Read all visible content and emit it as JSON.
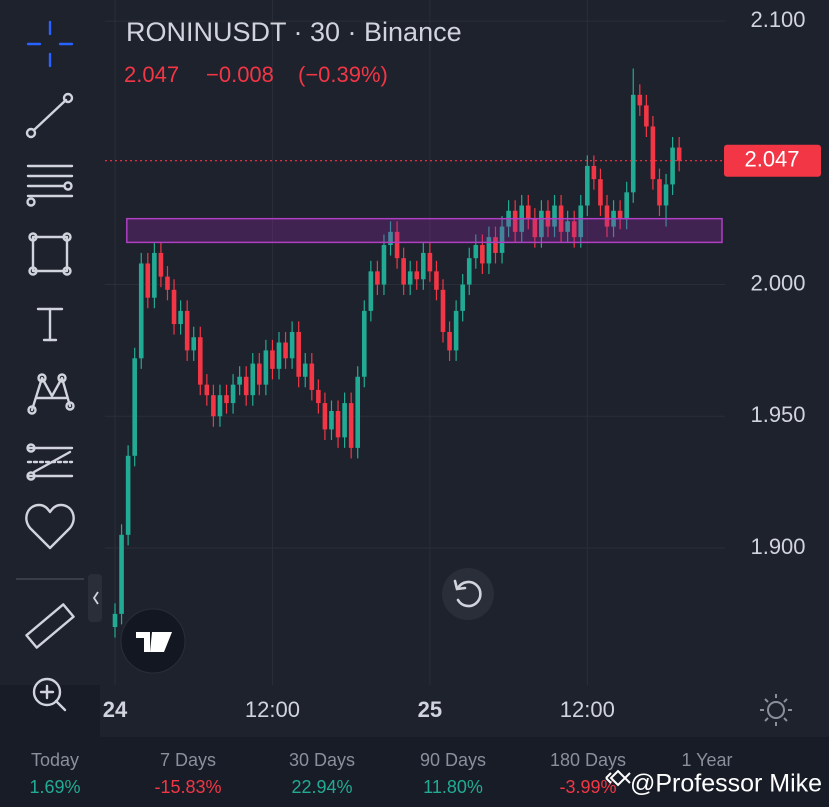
{
  "chart_data": {
    "type": "candlestick",
    "title": "RONINUSDT · 30 · Binance",
    "last_price": 2.047,
    "change": "−0.008",
    "change_pct": "(−0.39%)",
    "up_color": "#22ab94",
    "down_color": "#f23645",
    "grid": true,
    "ylim": [
      1.848,
      2.108
    ],
    "yticks": [
      {
        "value": 1.9,
        "label": "1.900"
      },
      {
        "value": 1.95,
        "label": "1.950"
      },
      {
        "value": 2.0,
        "label": "2.000"
      },
      {
        "value": 2.1,
        "label": "2.100"
      }
    ],
    "zone": {
      "low": 2.016,
      "high": 2.025,
      "start": 1.8
    },
    "categories": [
      "24",
      null,
      null,
      null,
      null,
      null,
      null,
      null,
      null,
      null,
      null,
      null,
      null,
      null,
      null,
      null,
      null,
      null,
      null,
      null,
      null,
      null,
      null,
      null,
      "12:00",
      null,
      null,
      null,
      null,
      null,
      null,
      null,
      null,
      null,
      null,
      null,
      null,
      null,
      null,
      null,
      null,
      null,
      null,
      null,
      null,
      null,
      null,
      null,
      "25",
      null,
      null,
      null,
      null,
      null,
      null,
      null,
      null,
      null,
      null,
      null,
      null,
      null,
      null,
      null,
      null,
      null,
      null,
      null,
      null,
      null,
      null,
      null,
      "12:00",
      null,
      null,
      null,
      null,
      null,
      null,
      null,
      null,
      null,
      null,
      null,
      null,
      null,
      null
    ],
    "open": [
      1.87,
      1.875,
      1.905,
      1.935,
      1.972,
      2.008,
      1.995,
      2.012,
      2.003,
      1.998,
      1.985,
      1.99,
      1.975,
      1.98,
      1.962,
      1.958,
      1.95,
      1.958,
      1.955,
      1.962,
      1.965,
      1.958,
      1.97,
      1.962,
      1.975,
      1.968,
      1.978,
      1.972,
      1.982,
      1.965,
      1.97,
      1.96,
      1.955,
      1.945,
      1.952,
      1.942,
      1.955,
      1.938,
      1.965,
      1.99,
      2.005,
      2.0,
      2.015,
      2.02,
      2.01,
      2.0,
      2.005,
      2.002,
      2.012,
      2.005,
      1.998,
      1.982,
      1.975,
      1.99,
      2.0,
      2.01,
      2.015,
      2.008,
      2.018,
      2.012,
      2.022,
      2.028,
      2.02,
      2.03,
      2.025,
      2.018,
      2.028,
      2.022,
      2.03,
      2.02,
      2.024,
      2.018,
      2.03,
      2.045,
      2.04,
      2.03,
      2.022,
      2.028,
      2.025,
      2.035,
      2.072,
      2.068,
      2.06,
      2.04,
      2.03,
      2.038,
      2.052
    ],
    "high": [
      1.879,
      1.909,
      1.939,
      1.976,
      2.012,
      2.012,
      2.016,
      2.016,
      2.007,
      2.002,
      1.994,
      1.994,
      1.984,
      1.984,
      1.966,
      1.962,
      1.962,
      1.962,
      1.966,
      1.969,
      1.969,
      1.974,
      1.974,
      1.979,
      1.979,
      1.982,
      1.982,
      1.986,
      1.986,
      1.974,
      1.974,
      1.964,
      1.959,
      1.956,
      1.956,
      1.959,
      1.959,
      1.969,
      1.994,
      2.009,
      2.009,
      2.019,
      2.024,
      2.024,
      2.014,
      2.009,
      2.009,
      2.016,
      2.016,
      2.009,
      2.002,
      1.986,
      1.994,
      2.004,
      2.014,
      2.019,
      2.019,
      2.022,
      2.022,
      2.026,
      2.032,
      2.032,
      2.034,
      2.034,
      2.029,
      2.032,
      2.032,
      2.034,
      2.034,
      2.028,
      2.028,
      2.034,
      2.049,
      2.049,
      2.044,
      2.034,
      2.032,
      2.032,
      2.039,
      2.082,
      2.076,
      2.072,
      2.064,
      2.044,
      2.042,
      2.056,
      2.056
    ],
    "low": [
      1.866,
      1.871,
      1.901,
      1.931,
      1.968,
      1.991,
      1.991,
      1.999,
      1.994,
      1.981,
      1.981,
      1.971,
      1.971,
      1.958,
      1.954,
      1.946,
      1.946,
      1.951,
      1.951,
      1.958,
      1.954,
      1.954,
      1.958,
      1.958,
      1.964,
      1.964,
      1.968,
      1.968,
      1.961,
      1.961,
      1.956,
      1.951,
      1.941,
      1.941,
      1.938,
      1.938,
      1.934,
      1.934,
      1.961,
      1.986,
      1.996,
      1.996,
      2.011,
      2.006,
      1.996,
      1.996,
      1.998,
      1.998,
      2.001,
      1.994,
      1.978,
      1.971,
      1.971,
      1.986,
      1.996,
      2.006,
      2.004,
      2.004,
      2.008,
      2.008,
      2.018,
      2.016,
      2.016,
      2.021,
      2.014,
      2.014,
      2.018,
      2.018,
      2.016,
      2.016,
      2.014,
      2.014,
      2.026,
      2.036,
      2.026,
      2.018,
      2.018,
      2.021,
      2.021,
      2.031,
      2.064,
      2.056,
      2.036,
      2.026,
      2.022,
      2.034,
      2.043
    ],
    "close": [
      1.875,
      1.905,
      1.935,
      1.972,
      2.008,
      1.995,
      2.012,
      2.003,
      1.998,
      1.985,
      1.99,
      1.975,
      1.98,
      1.962,
      1.958,
      1.95,
      1.958,
      1.955,
      1.962,
      1.965,
      1.958,
      1.97,
      1.962,
      1.975,
      1.968,
      1.978,
      1.972,
      1.982,
      1.965,
      1.97,
      1.96,
      1.955,
      1.945,
      1.952,
      1.942,
      1.955,
      1.938,
      1.965,
      1.99,
      2.005,
      2.0,
      2.015,
      2.02,
      2.01,
      2.0,
      2.005,
      2.002,
      2.012,
      2.005,
      1.998,
      1.982,
      1.975,
      1.99,
      2.0,
      2.01,
      2.015,
      2.008,
      2.018,
      2.012,
      2.022,
      2.028,
      2.02,
      2.03,
      2.025,
      2.018,
      2.028,
      2.022,
      2.03,
      2.02,
      2.024,
      2.018,
      2.03,
      2.045,
      2.04,
      2.03,
      2.022,
      2.028,
      2.025,
      2.035,
      2.072,
      2.068,
      2.06,
      2.04,
      2.03,
      2.038,
      2.052,
      2.047
    ]
  },
  "performance": [
    {
      "label": "Today",
      "value": "1.69%"
    },
    {
      "label": "7 Days",
      "value": "-15.83%"
    },
    {
      "label": "30 Days",
      "value": "22.94%"
    },
    {
      "label": "90 Days",
      "value": "11.80%"
    },
    {
      "label": "180 Days",
      "value": "-3.99%"
    },
    {
      "label": "1 Year"
    }
  ],
  "watermark": "@Professor Mike"
}
